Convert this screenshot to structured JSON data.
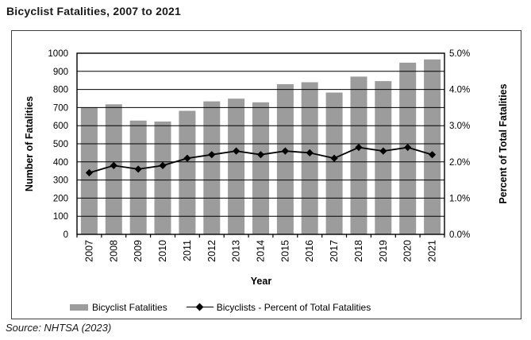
{
  "title": "Bicyclist Fatalities, 2007 to 2021",
  "source": "Source: NHTSA (2023)",
  "colors": {
    "bar": "#9c9c9c",
    "line": "#000000",
    "grid": "#000000",
    "plot_border": "#000000",
    "frame_border": "#3f3f3f",
    "text": "#000000"
  },
  "chart_data": {
    "type": "bar",
    "subtype": "bar-line combo, dual axis",
    "title": "Bicyclist Fatalities, 2007 to 2021",
    "xlabel": "Year",
    "ylabel_left": "Number of Fatalities",
    "ylabel_right": "Percent of Total Fatalities",
    "categories": [
      "2007",
      "2008",
      "2009",
      "2010",
      "2011",
      "2012",
      "2013",
      "2014",
      "2015",
      "2016",
      "2017",
      "2018",
      "2019",
      "2020",
      "2021"
    ],
    "series": [
      {
        "name": "Bicyclist Fatalities",
        "type": "bar",
        "axis": "left",
        "values": [
          701,
          718,
          628,
          623,
          682,
          734,
          749,
          729,
          829,
          840,
          783,
          871,
          846,
          948,
          966
        ]
      },
      {
        "name": "Bicyclists - Percent of Total Fatalities",
        "type": "line",
        "axis": "right",
        "marker": "diamond",
        "values": [
          1.7,
          1.9,
          1.8,
          1.9,
          2.1,
          2.2,
          2.3,
          2.2,
          2.3,
          2.25,
          2.1,
          2.4,
          2.3,
          2.4,
          2.2
        ]
      }
    ],
    "ylim_left": [
      0,
      1000
    ],
    "ytick_labels_left": [
      "0",
      "100",
      "200",
      "300",
      "400",
      "500",
      "600",
      "700",
      "800",
      "900",
      "1000"
    ],
    "ylim_right": [
      0,
      5
    ],
    "ytick_labels_right": [
      "0.0%",
      "1.0%",
      "2.0%",
      "3.0%",
      "4.0%",
      "5.0%"
    ],
    "grid": "horizontal gridlines every 100 fatalities (0.5%), drawn over bars",
    "legend_position": "bottom"
  }
}
